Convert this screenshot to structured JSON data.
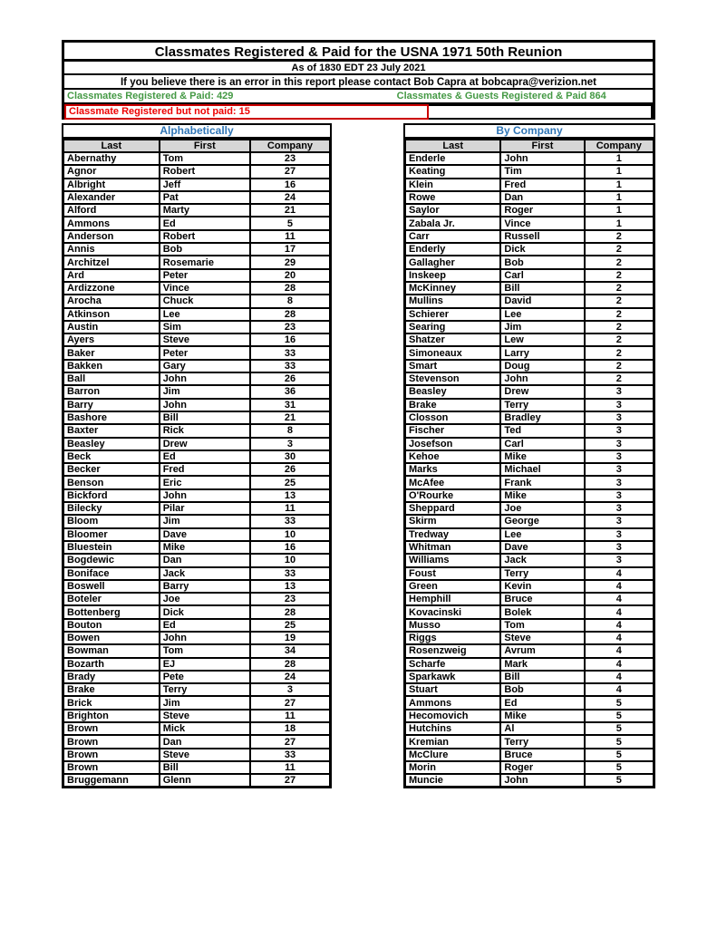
{
  "page": {
    "title": "Classmates Registered & Paid for the USNA 1971 50th Reunion",
    "as_of": "As of 1830 EDT 23 July 2021",
    "contact": "If you believe there is an error in this report please contact Bob Capra at bobcapra@verizion.net",
    "stats": {
      "registered_paid": "Classmates Registered & Paid: 429",
      "guests_registered_paid": "Classmates & Guests Registered & Paid  864",
      "registered_not_paid": "Classmate Registered but not paid: 15"
    },
    "colors": {
      "green": "#449944",
      "red": "#ee0000",
      "blue": "#2e74b5",
      "header_bg": "#d6d6d6"
    }
  },
  "left_table": {
    "section_title": "Alphabetically",
    "headers": [
      "Last",
      "First",
      "Company"
    ],
    "rows": [
      {
        "last": "Abernathy",
        "first": "Tom",
        "company": "23"
      },
      {
        "last": "Agnor",
        "first": "Robert",
        "company": "27"
      },
      {
        "last": "Albright",
        "first": "Jeff",
        "company": "16"
      },
      {
        "last": "Alexander",
        "first": "Pat",
        "company": "24"
      },
      {
        "last": "Alford",
        "first": "Marty",
        "company": "21"
      },
      {
        "last": "Ammons",
        "first": "Ed",
        "company": "5"
      },
      {
        "last": "Anderson",
        "first": "Robert",
        "company": "11"
      },
      {
        "last": "Annis",
        "first": "Bob",
        "company": "17"
      },
      {
        "last": "Architzel",
        "first": "Rosemarie",
        "company": "29"
      },
      {
        "last": "Ard",
        "first": "Peter",
        "company": "20"
      },
      {
        "last": "Ardizzone",
        "first": "Vince",
        "company": "28"
      },
      {
        "last": "Arocha",
        "first": "Chuck",
        "company": "8"
      },
      {
        "last": "Atkinson",
        "first": "Lee",
        "company": "28"
      },
      {
        "last": "Austin",
        "first": "Sim",
        "company": "23"
      },
      {
        "last": "Ayers",
        "first": "Steve",
        "company": "16"
      },
      {
        "last": "Baker",
        "first": "Peter",
        "company": "33"
      },
      {
        "last": "Bakken",
        "first": "Gary",
        "company": "33"
      },
      {
        "last": "Ball",
        "first": "John",
        "company": "26"
      },
      {
        "last": "Barron",
        "first": "Jim",
        "company": "36"
      },
      {
        "last": "Barry",
        "first": "John",
        "company": "31"
      },
      {
        "last": "Bashore",
        "first": "Bill",
        "company": "21"
      },
      {
        "last": "Baxter",
        "first": "Rick",
        "company": "8"
      },
      {
        "last": "Beasley",
        "first": "Drew",
        "company": "3"
      },
      {
        "last": "Beck",
        "first": "Ed",
        "company": "30"
      },
      {
        "last": "Becker",
        "first": "Fred",
        "company": "26"
      },
      {
        "last": "Benson",
        "first": "Eric",
        "company": "25"
      },
      {
        "last": "Bickford",
        "first": "John",
        "company": "13"
      },
      {
        "last": "Bilecky",
        "first": "Pilar",
        "company": "11"
      },
      {
        "last": "Bloom",
        "first": "Jim",
        "company": "33"
      },
      {
        "last": "Bloomer",
        "first": "Dave",
        "company": "10"
      },
      {
        "last": "Bluestein",
        "first": "Mike",
        "company": "16"
      },
      {
        "last": "Bogdewic",
        "first": "Dan",
        "company": "10"
      },
      {
        "last": "Boniface",
        "first": "Jack",
        "company": "33"
      },
      {
        "last": "Boswell",
        "first": "Barry",
        "company": "13"
      },
      {
        "last": "Boteler",
        "first": "Joe",
        "company": "23"
      },
      {
        "last": "Bottenberg",
        "first": "Dick",
        "company": "28"
      },
      {
        "last": "Bouton",
        "first": "Ed",
        "company": "25"
      },
      {
        "last": "Bowen",
        "first": "John",
        "company": "19"
      },
      {
        "last": "Bowman",
        "first": "Tom",
        "company": "34"
      },
      {
        "last": "Bozarth",
        "first": "EJ",
        "company": "28"
      },
      {
        "last": "Brady",
        "first": "Pete",
        "company": "24"
      },
      {
        "last": "Brake",
        "first": "Terry",
        "company": "3"
      },
      {
        "last": "Brick",
        "first": "Jim",
        "company": "27"
      },
      {
        "last": "Brighton",
        "first": "Steve",
        "company": "11"
      },
      {
        "last": "Brown",
        "first": "Mick",
        "company": "18"
      },
      {
        "last": "Brown",
        "first": "Dan",
        "company": "27"
      },
      {
        "last": "Brown",
        "first": "Steve",
        "company": "33"
      },
      {
        "last": "Brown",
        "first": "Bill",
        "company": "11"
      },
      {
        "last": "Bruggemann",
        "first": "Glenn",
        "company": "27"
      }
    ]
  },
  "right_table": {
    "section_title": "By Company",
    "headers": [
      "Last",
      "First",
      "Company"
    ],
    "rows": [
      {
        "last": "Enderle",
        "first": "John",
        "company": "1"
      },
      {
        "last": "Keating",
        "first": "Tim",
        "company": "1"
      },
      {
        "last": "Klein",
        "first": "Fred",
        "company": "1"
      },
      {
        "last": "Rowe",
        "first": "Dan",
        "company": "1"
      },
      {
        "last": "Saylor",
        "first": "Roger",
        "company": "1"
      },
      {
        "last": "Zabala Jr.",
        "first": "Vince",
        "company": "1"
      },
      {
        "last": "Carr",
        "first": "Russell",
        "company": "2"
      },
      {
        "last": "Enderly",
        "first": "Dick",
        "company": "2"
      },
      {
        "last": "Gallagher",
        "first": "Bob",
        "company": "2"
      },
      {
        "last": "Inskeep",
        "first": "Carl",
        "company": "2"
      },
      {
        "last": "McKinney",
        "first": "Bill",
        "company": "2"
      },
      {
        "last": "Mullins",
        "first": "David",
        "company": "2"
      },
      {
        "last": "Schierer",
        "first": "Lee",
        "company": "2"
      },
      {
        "last": "Searing",
        "first": "Jim",
        "company": "2"
      },
      {
        "last": "Shatzer",
        "first": "Lew",
        "company": "2"
      },
      {
        "last": "Simoneaux",
        "first": "Larry",
        "company": "2"
      },
      {
        "last": "Smart",
        "first": "Doug",
        "company": "2"
      },
      {
        "last": "Stevenson",
        "first": "John",
        "company": "2"
      },
      {
        "last": "Beasley",
        "first": "Drew",
        "company": "3"
      },
      {
        "last": "Brake",
        "first": "Terry",
        "company": "3"
      },
      {
        "last": "Closson",
        "first": "Bradley",
        "company": "3"
      },
      {
        "last": "Fischer",
        "first": "Ted",
        "company": "3"
      },
      {
        "last": "Josefson",
        "first": "Carl",
        "company": "3"
      },
      {
        "last": "Kehoe",
        "first": "Mike",
        "company": "3"
      },
      {
        "last": "Marks",
        "first": "Michael",
        "company": "3"
      },
      {
        "last": "McAfee",
        "first": "Frank",
        "company": "3"
      },
      {
        "last": "O'Rourke",
        "first": "Mike",
        "company": "3"
      },
      {
        "last": "Sheppard",
        "first": "Joe",
        "company": "3"
      },
      {
        "last": "Skirm",
        "first": "George",
        "company": "3"
      },
      {
        "last": "Tredway",
        "first": "Lee",
        "company": "3"
      },
      {
        "last": "Whitman",
        "first": "Dave",
        "company": "3"
      },
      {
        "last": "Williams",
        "first": "Jack",
        "company": "3"
      },
      {
        "last": "Foust",
        "first": "Terry",
        "company": "4"
      },
      {
        "last": "Green",
        "first": "Kevin",
        "company": "4"
      },
      {
        "last": "Hemphill",
        "first": "Bruce",
        "company": "4"
      },
      {
        "last": "Kovacinski",
        "first": "Bolek",
        "company": "4"
      },
      {
        "last": "Musso",
        "first": "Tom",
        "company": "4"
      },
      {
        "last": "Riggs",
        "first": "Steve",
        "company": "4"
      },
      {
        "last": "Rosenzweig",
        "first": "Avrum",
        "company": "4"
      },
      {
        "last": "Scharfe",
        "first": "Mark",
        "company": "4"
      },
      {
        "last": "Sparkawk",
        "first": "Bill",
        "company": "4"
      },
      {
        "last": "Stuart",
        "first": "Bob",
        "company": "4"
      },
      {
        "last": "Ammons",
        "first": "Ed",
        "company": "5"
      },
      {
        "last": "Hecomovich",
        "first": "Mike",
        "company": "5"
      },
      {
        "last": "Hutchins",
        "first": "Al",
        "company": "5"
      },
      {
        "last": "Kremian",
        "first": "Terry",
        "company": "5"
      },
      {
        "last": "McClure",
        "first": "Bruce",
        "company": "5"
      },
      {
        "last": "Morin",
        "first": "Roger",
        "company": "5"
      },
      {
        "last": "Muncie",
        "first": "John",
        "company": "5"
      }
    ]
  }
}
